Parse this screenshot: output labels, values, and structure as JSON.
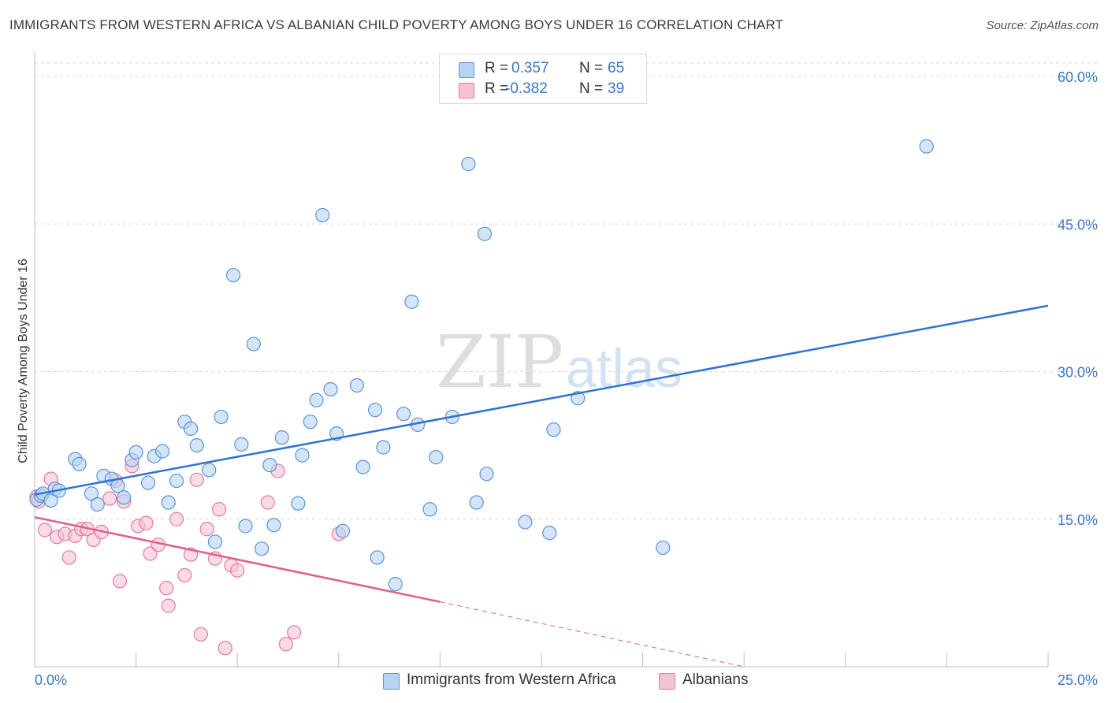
{
  "title": "IMMIGRANTS FROM WESTERN AFRICA VS ALBANIAN CHILD POVERTY AMONG BOYS UNDER 16 CORRELATION CHART",
  "source": "Source: ZipAtlas.com",
  "watermark": {
    "zip": "ZIP",
    "atlas": "atlas"
  },
  "colors": {
    "blue": "#5b93d6",
    "blue_fill": "#b9d3f3",
    "blue_line": "#2f73d0",
    "pink": "#e8799e",
    "pink_fill": "#f5c3d4",
    "pink_line": "#e0608c",
    "axis_text": "#3b76c4",
    "grid": "#d9d9d9"
  },
  "stats": {
    "r_label": "R =",
    "n_label": "N =",
    "rows": [
      {
        "r": "0.357",
        "n": "65"
      },
      {
        "r": "-0.382",
        "n": "39"
      }
    ]
  },
  "chart_data": {
    "type": "scatter",
    "title": "IMMIGRANTS FROM WESTERN AFRICA VS ALBANIAN CHILD POVERTY AMONG BOYS UNDER 16 CORRELATION CHART",
    "xlabel": "",
    "ylabel": "Child Poverty Among Boys Under 16",
    "xlim": [
      0,
      25
    ],
    "ylim": [
      0,
      60
    ],
    "x_ticks": [
      {
        "value": 0,
        "label": "0.0%"
      },
      {
        "value": 25,
        "label": "25.0%"
      }
    ],
    "y_ticks": [
      {
        "value": 15,
        "label": "15.0%"
      },
      {
        "value": 30,
        "label": "30.0%"
      },
      {
        "value": 45,
        "label": "45.0%"
      },
      {
        "value": 60,
        "label": "60.0%"
      }
    ],
    "grid": true,
    "legend_position": "bottom",
    "series": [
      {
        "name": "Immigrants from Western Africa",
        "color": "#5b93d6",
        "trend": {
          "x0": 0,
          "y0": 17.5,
          "x1": 25,
          "y1": 36.7
        },
        "points": [
          [
            0.05,
            17.0
          ],
          [
            0.15,
            17.4
          ],
          [
            0.2,
            17.6
          ],
          [
            0.4,
            16.9
          ],
          [
            0.5,
            18.1
          ],
          [
            0.6,
            17.9
          ],
          [
            1.0,
            21.1
          ],
          [
            1.1,
            20.6
          ],
          [
            1.4,
            17.6
          ],
          [
            1.55,
            16.5
          ],
          [
            1.7,
            19.4
          ],
          [
            1.9,
            19.1
          ],
          [
            2.05,
            18.4
          ],
          [
            2.2,
            17.2
          ],
          [
            2.4,
            21.0
          ],
          [
            2.5,
            21.8
          ],
          [
            2.8,
            18.7
          ],
          [
            2.95,
            21.4
          ],
          [
            3.15,
            21.9
          ],
          [
            3.3,
            16.7
          ],
          [
            3.5,
            18.9
          ],
          [
            3.7,
            24.9
          ],
          [
            3.85,
            24.2
          ],
          [
            4.0,
            22.5
          ],
          [
            4.3,
            20.0
          ],
          [
            4.45,
            12.7
          ],
          [
            4.6,
            25.4
          ],
          [
            4.9,
            39.8
          ],
          [
            5.1,
            22.6
          ],
          [
            5.2,
            14.3
          ],
          [
            5.4,
            32.8
          ],
          [
            5.6,
            12.0
          ],
          [
            5.8,
            20.5
          ],
          [
            5.9,
            14.4
          ],
          [
            6.1,
            23.3
          ],
          [
            6.5,
            16.6
          ],
          [
            6.6,
            21.5
          ],
          [
            6.8,
            24.9
          ],
          [
            6.95,
            27.1
          ],
          [
            7.1,
            45.9
          ],
          [
            7.3,
            28.2
          ],
          [
            7.45,
            23.7
          ],
          [
            7.6,
            13.8
          ],
          [
            7.95,
            28.6
          ],
          [
            8.1,
            20.3
          ],
          [
            8.4,
            26.1
          ],
          [
            8.45,
            11.1
          ],
          [
            8.6,
            22.3
          ],
          [
            8.9,
            8.4
          ],
          [
            9.1,
            25.7
          ],
          [
            9.3,
            37.1
          ],
          [
            9.45,
            24.6
          ],
          [
            9.75,
            16.0
          ],
          [
            9.9,
            21.3
          ],
          [
            10.3,
            25.4
          ],
          [
            10.7,
            51.1
          ],
          [
            10.9,
            16.7
          ],
          [
            11.1,
            44.0
          ],
          [
            11.15,
            19.6
          ],
          [
            12.1,
            14.7
          ],
          [
            12.7,
            13.6
          ],
          [
            12.8,
            24.1
          ],
          [
            13.4,
            27.3
          ],
          [
            15.5,
            12.1
          ],
          [
            22.0,
            52.9
          ]
        ]
      },
      {
        "name": "Albanians",
        "color": "#e8799e",
        "trend": {
          "x0": 0,
          "y0": 15.2,
          "x1": 10.0,
          "y1": 6.6
        },
        "trend_dashed_to": {
          "x": 17.5,
          "y": 0.0
        },
        "points": [
          [
            0.05,
            17.3
          ],
          [
            0.1,
            16.8
          ],
          [
            0.25,
            13.9
          ],
          [
            0.4,
            19.1
          ],
          [
            0.55,
            13.2
          ],
          [
            0.75,
            13.5
          ],
          [
            0.85,
            11.1
          ],
          [
            1.0,
            13.3
          ],
          [
            1.15,
            14.0
          ],
          [
            1.3,
            14.0
          ],
          [
            1.45,
            12.9
          ],
          [
            1.65,
            13.7
          ],
          [
            1.85,
            17.1
          ],
          [
            2.0,
            18.9
          ],
          [
            2.1,
            8.7
          ],
          [
            2.2,
            16.8
          ],
          [
            2.4,
            20.4
          ],
          [
            2.55,
            14.3
          ],
          [
            2.75,
            14.6
          ],
          [
            2.85,
            11.5
          ],
          [
            3.05,
            12.4
          ],
          [
            3.25,
            8.0
          ],
          [
            3.3,
            6.2
          ],
          [
            3.5,
            15.0
          ],
          [
            3.7,
            9.3
          ],
          [
            3.85,
            11.4
          ],
          [
            4.0,
            19.0
          ],
          [
            4.1,
            3.3
          ],
          [
            4.25,
            14.0
          ],
          [
            4.45,
            11.0
          ],
          [
            4.55,
            16.0
          ],
          [
            4.7,
            1.9
          ],
          [
            4.85,
            10.3
          ],
          [
            5.0,
            9.8
          ],
          [
            5.75,
            16.7
          ],
          [
            6.0,
            19.9
          ],
          [
            6.2,
            2.3
          ],
          [
            6.4,
            3.5
          ],
          [
            7.5,
            13.5
          ]
        ]
      }
    ]
  }
}
